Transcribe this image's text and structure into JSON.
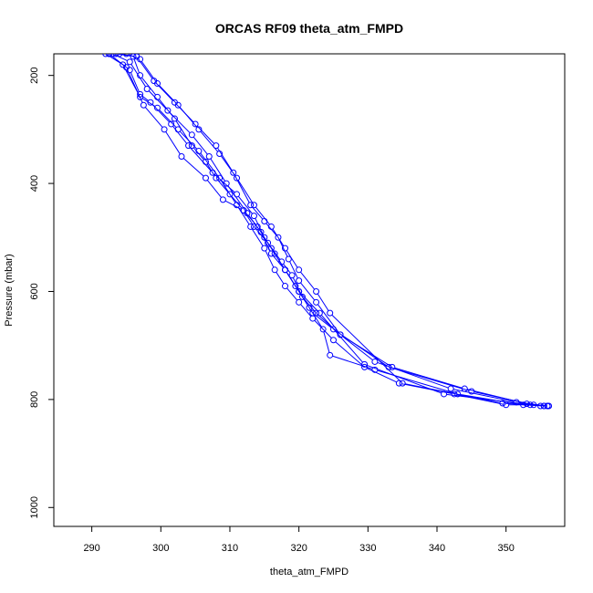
{
  "chart_data": {
    "type": "line",
    "title": "ORCAS RF09 theta_atm_FMPD",
    "xlabel": "theta_atm_FMPD",
    "ylabel": "Pressure (mbar)",
    "xlim": [
      284.5,
      358.5
    ],
    "ylim": [
      1035,
      160
    ],
    "y_axis_inverted": true,
    "x_ticks": [
      290,
      300,
      310,
      320,
      330,
      340,
      350
    ],
    "y_ticks": [
      200,
      400,
      600,
      800,
      1000
    ],
    "grid": false,
    "line_color": "#0000ff",
    "marker": "open-circle",
    "series": [
      {
        "x": [
          292.0,
          294.5,
          297.0,
          299.5,
          302.5,
          305.5,
          308.5,
          311.0,
          313.0,
          315.0,
          316.5,
          318.0,
          320.0,
          322.0,
          325.0,
          329.5,
          334.5,
          342.5,
          350.0,
          353.5,
          355.5
        ],
        "y": [
          160,
          180,
          240,
          260,
          300,
          340,
          390,
          440,
          480,
          520,
          560,
          590,
          620,
          650,
          690,
          740,
          770,
          790,
          810,
          810,
          812
        ]
      },
      {
        "x": [
          292.5,
          295.0,
          297.5,
          300.5,
          303.0,
          306.5,
          309.0,
          312.0,
          313.5,
          315.5,
          317.5,
          319.0,
          320.5,
          322.5,
          326.0,
          331.0,
          342.0,
          351.5,
          356.0
        ],
        "y": [
          160,
          185,
          255,
          300,
          350,
          390,
          430,
          450,
          480,
          510,
          545,
          570,
          610,
          640,
          680,
          730,
          780,
          805,
          812
        ]
      },
      {
        "x": [
          293.5,
          296.5,
          299.0,
          302.0,
          305.0,
          308.0,
          310.5,
          313.0,
          315.0,
          317.0,
          318.5,
          320.0,
          322.5,
          326.0,
          333.5,
          344.0,
          353.0,
          356.2
        ],
        "y": [
          160,
          165,
          210,
          250,
          290,
          330,
          380,
          440,
          470,
          500,
          540,
          580,
          620,
          680,
          740,
          780,
          808,
          812
        ]
      },
      {
        "x": [
          295.0,
          297.0,
          299.5,
          302.5,
          305.5,
          308.5,
          311.0,
          313.5,
          316.0,
          318.0,
          320.0,
          322.5,
          324.5,
          335.0,
          349.5,
          355.5
        ],
        "y": [
          160,
          170,
          215,
          255,
          300,
          345,
          390,
          440,
          480,
          520,
          560,
          600,
          640,
          770,
          807,
          812
        ]
      },
      {
        "x": [
          292.5,
          295.5,
          297.0,
          298.5,
          301.5,
          304.0,
          307.5,
          311.0,
          313.5,
          315.0,
          316.5,
          318.0,
          319.5,
          321.5,
          323.5,
          324.5,
          331.0,
          343.0,
          352.5,
          356.0
        ],
        "y": [
          160,
          190,
          235,
          250,
          290,
          330,
          380,
          420,
          460,
          500,
          530,
          560,
          590,
          630,
          670,
          718,
          745,
          790,
          810,
          812
        ]
      },
      {
        "x": [
          294.0,
          296.0,
          297.0,
          299.5,
          302.0,
          304.5,
          306.5,
          308.0,
          310.0,
          312.0,
          314.0,
          316.0,
          318.0,
          320.0,
          323.0,
          329.5,
          341.0,
          355.0
        ],
        "y": [
          160,
          165,
          200,
          240,
          280,
          330,
          360,
          390,
          420,
          450,
          480,
          520,
          560,
          600,
          640,
          735,
          790,
          812
        ]
      },
      {
        "x": [
          293.0,
          295.5,
          298.0,
          301.0,
          304.5,
          307.0,
          309.5,
          312.5,
          314.5,
          316.0,
          318.0,
          320.0,
          322.0,
          325.0,
          333.0,
          345.0,
          354.0,
          356.0
        ],
        "y": [
          160,
          175,
          225,
          265,
          310,
          350,
          400,
          455,
          490,
          530,
          560,
          600,
          640,
          670,
          740,
          785,
          810,
          812
        ]
      }
    ]
  }
}
